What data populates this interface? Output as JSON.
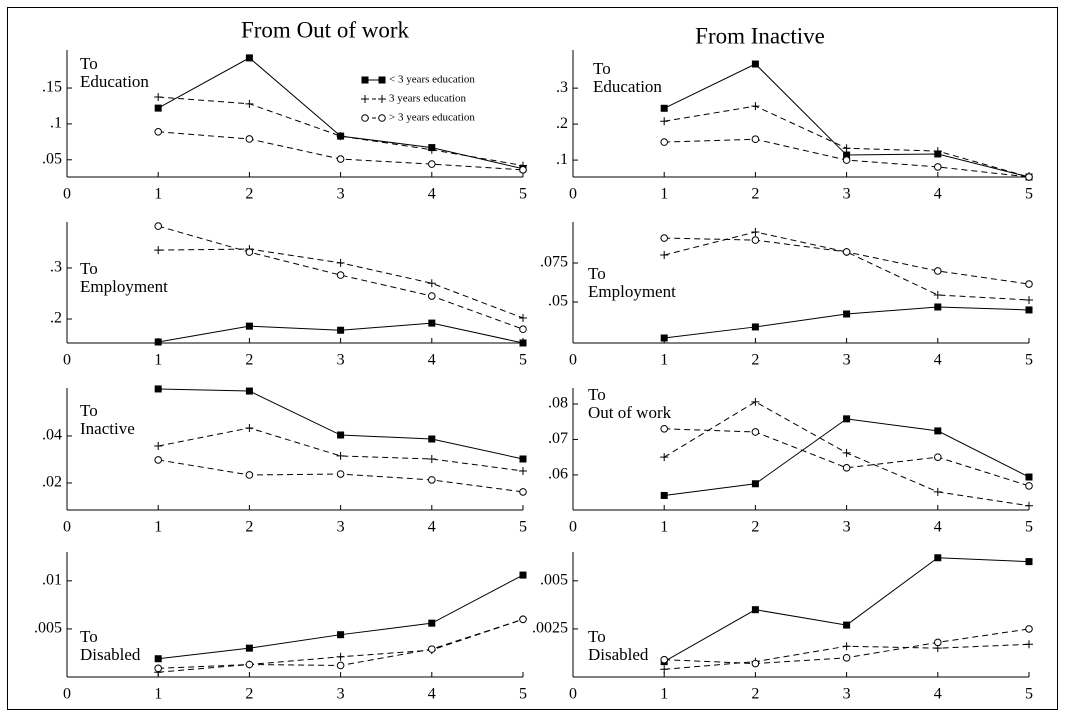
{
  "chart_data": [
    {
      "type": "line",
      "title": "From Out of work",
      "label_lines": [
        "To",
        "Education"
      ],
      "x": [
        1,
        2,
        3,
        4,
        5
      ],
      "xlim": [
        0,
        5
      ],
      "xticks": [
        0,
        1,
        2,
        3,
        4,
        5
      ],
      "ylim": [
        0.026,
        0.203
      ],
      "yticks": [
        {
          "value": 0.05,
          "label": ".05"
        },
        {
          "value": 0.1,
          "label": ".1"
        },
        {
          "value": 0.15,
          "label": ".15"
        }
      ],
      "legend": "upper right",
      "series": [
        {
          "name": "< 3 years education",
          "color": "#000000",
          "marker": "square",
          "dash": false,
          "values": [
            0.122,
            0.192,
            0.083,
            0.067,
            0.0375
          ]
        },
        {
          "name": "3 years education",
          "color": "#000000",
          "marker": "plus",
          "dash": true,
          "values": [
            0.1375,
            0.128,
            0.083,
            0.064,
            0.042
          ]
        },
        {
          "name": "> 3 years education",
          "color": "#000000",
          "marker": "circle",
          "dash": true,
          "values": [
            0.089,
            0.079,
            0.051,
            0.044,
            0.036
          ]
        }
      ]
    },
    {
      "type": "line",
      "title": "From Inactive",
      "label_lines": [
        "To",
        "Education"
      ],
      "x": [
        1,
        2,
        3,
        4,
        5
      ],
      "xlim": [
        0,
        5
      ],
      "xticks": [
        0,
        1,
        2,
        3,
        4,
        5
      ],
      "ylim": [
        0.053,
        0.406
      ],
      "yticks": [
        {
          "value": 0.1,
          "label": ".1"
        },
        {
          "value": 0.2,
          "label": ".2"
        },
        {
          "value": 0.3,
          "label": ".3"
        }
      ],
      "series": [
        {
          "color": "#000000",
          "marker": "square",
          "dash": false,
          "values": [
            0.244,
            0.367,
            0.114,
            0.117,
            0.053
          ]
        },
        {
          "color": "#000000",
          "marker": "plus",
          "dash": true,
          "values": [
            0.208,
            0.25,
            0.133,
            0.125,
            0.053
          ]
        },
        {
          "color": "#000000",
          "marker": "circle",
          "dash": true,
          "values": [
            0.15,
            0.158,
            0.1,
            0.081,
            0.053
          ]
        }
      ]
    },
    {
      "type": "line",
      "label_lines": [
        "To",
        "Employment"
      ],
      "x": [
        1,
        2,
        3,
        4,
        5
      ],
      "xlim": [
        0,
        5
      ],
      "xticks": [
        0,
        1,
        2,
        3,
        4,
        5
      ],
      "ylim": [
        0.153,
        0.39
      ],
      "yticks": [
        {
          "value": 0.2,
          "label": ".2"
        },
        {
          "value": 0.3,
          "label": ".3"
        }
      ],
      "series": [
        {
          "color": "#000000",
          "marker": "square",
          "dash": false,
          "values": [
            0.155,
            0.186,
            0.178,
            0.192,
            0.153
          ]
        },
        {
          "color": "#000000",
          "marker": "plus",
          "dash": true,
          "values": [
            0.335,
            0.337,
            0.31,
            0.27,
            0.202
          ]
        },
        {
          "color": "#000000",
          "marker": "circle",
          "dash": true,
          "values": [
            0.382,
            0.331,
            0.286,
            0.245,
            0.18
          ]
        }
      ]
    },
    {
      "type": "line",
      "label_lines": [
        "To",
        "Employment"
      ],
      "x": [
        1,
        2,
        3,
        4,
        5
      ],
      "xlim": [
        0,
        5
      ],
      "xticks": [
        0,
        1,
        2,
        3,
        4,
        5
      ],
      "ylim": [
        0.0237,
        0.1013
      ],
      "yticks": [
        {
          "value": 0.05,
          "label": ".05"
        },
        {
          "value": 0.075,
          "label": ".075"
        }
      ],
      "series": [
        {
          "color": "#000000",
          "marker": "square",
          "dash": false,
          "values": [
            0.0269,
            0.034,
            0.0423,
            0.0468,
            0.0449
          ]
        },
        {
          "color": "#000000",
          "marker": "plus",
          "dash": true,
          "values": [
            0.0801,
            0.0949,
            0.0821,
            0.0545,
            0.0513
          ]
        },
        {
          "color": "#000000",
          "marker": "circle",
          "dash": true,
          "values": [
            0.091,
            0.0897,
            0.0821,
            0.0699,
            0.0615
          ]
        }
      ]
    },
    {
      "type": "line",
      "label_lines": [
        "To",
        "Inactive"
      ],
      "x": [
        1,
        2,
        3,
        4,
        5
      ],
      "xlim": [
        0,
        5
      ],
      "xticks": [
        0,
        1,
        2,
        3,
        4,
        5
      ],
      "ylim": [
        0.0085,
        0.0604
      ],
      "yticks": [
        {
          "value": 0.02,
          "label": ".02"
        },
        {
          "value": 0.04,
          "label": ".04"
        }
      ],
      "series": [
        {
          "color": "#000000",
          "marker": "square",
          "dash": false,
          "values": [
            0.06,
            0.0591,
            0.0404,
            0.0387,
            0.0302
          ]
        },
        {
          "color": "#000000",
          "marker": "plus",
          "dash": true,
          "values": [
            0.0357,
            0.0434,
            0.0315,
            0.0302,
            0.0251
          ]
        },
        {
          "color": "#000000",
          "marker": "circle",
          "dash": true,
          "values": [
            0.0298,
            0.0234,
            0.0238,
            0.0213,
            0.0162
          ]
        }
      ]
    },
    {
      "type": "line",
      "label_lines": [
        "To",
        "Out of work"
      ],
      "x": [
        1,
        2,
        3,
        4,
        5
      ],
      "xlim": [
        0,
        5
      ],
      "xticks": [
        0,
        1,
        2,
        3,
        4,
        5
      ],
      "ylim": [
        0.0501,
        0.0845
      ],
      "yticks": [
        {
          "value": 0.06,
          "label": ".06"
        },
        {
          "value": 0.07,
          "label": ".07"
        },
        {
          "value": 0.08,
          "label": ".08"
        }
      ],
      "series": [
        {
          "color": "#000000",
          "marker": "square",
          "dash": false,
          "values": [
            0.0542,
            0.0575,
            0.0758,
            0.0724,
            0.0594
          ]
        },
        {
          "color": "#000000",
          "marker": "plus",
          "dash": true,
          "values": [
            0.065,
            0.0806,
            0.0662,
            0.0552,
            0.0513
          ]
        },
        {
          "color": "#000000",
          "marker": "circle",
          "dash": true,
          "values": [
            0.073,
            0.0721,
            0.062,
            0.065,
            0.0569
          ]
        }
      ]
    },
    {
      "type": "line",
      "label_lines": [
        "To",
        "Disabled"
      ],
      "x": [
        1,
        2,
        3,
        4,
        5
      ],
      "xlim": [
        0,
        5
      ],
      "xticks": [
        0,
        1,
        2,
        3,
        4,
        5
      ],
      "ylim": [
        0,
        0.013
      ],
      "yticks": [
        {
          "value": 0.005,
          "label": ".005"
        },
        {
          "value": 0.01,
          "label": ".01"
        }
      ],
      "series": [
        {
          "color": "#000000",
          "marker": "square",
          "dash": false,
          "values": [
            0.0019,
            0.003,
            0.0044,
            0.0056,
            0.0106
          ]
        },
        {
          "color": "#000000",
          "marker": "plus",
          "dash": true,
          "values": [
            0.0005,
            0.0013,
            0.0021,
            0.0028,
            0.006
          ]
        },
        {
          "color": "#000000",
          "marker": "circle",
          "dash": true,
          "values": [
            0.0009,
            0.0013,
            0.0012,
            0.0029,
            0.006
          ]
        }
      ]
    },
    {
      "type": "line",
      "label_lines": [
        "To",
        "Disabled"
      ],
      "x": [
        1,
        2,
        3,
        4,
        5
      ],
      "xlim": [
        0,
        5
      ],
      "xticks": [
        0,
        1,
        2,
        3,
        4,
        5
      ],
      "ylim": [
        0,
        0.0065
      ],
      "yticks": [
        {
          "value": 0.0025,
          "label": ".0025"
        },
        {
          "value": 0.005,
          "label": ".005"
        }
      ],
      "series": [
        {
          "color": "#000000",
          "marker": "square",
          "dash": false,
          "values": [
            0.0008,
            0.0035,
            0.0027,
            0.0062,
            0.006
          ]
        },
        {
          "color": "#000000",
          "marker": "plus",
          "dash": true,
          "values": [
            0.0004,
            0.0008,
            0.0016,
            0.0015,
            0.0017
          ]
        },
        {
          "color": "#000000",
          "marker": "circle",
          "dash": true,
          "values": [
            0.0009,
            0.0007,
            0.001,
            0.0018,
            0.0025
          ]
        }
      ]
    }
  ]
}
